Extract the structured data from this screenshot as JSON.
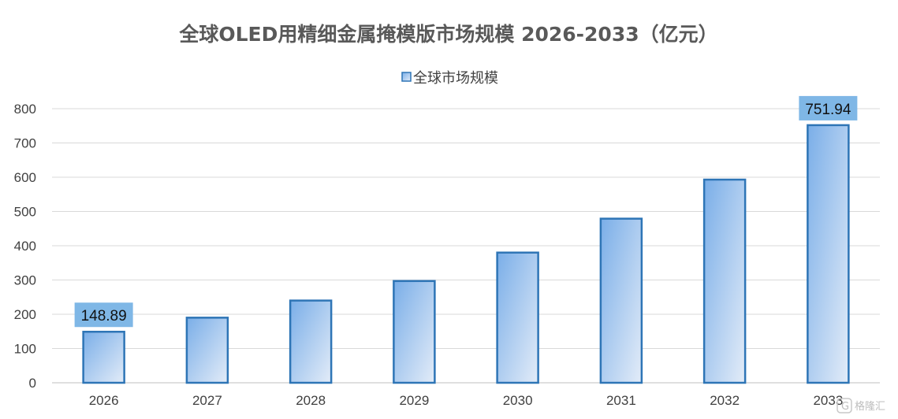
{
  "chart_data": {
    "type": "bar",
    "title": "全球OLED用精细金属掩模版市场规模 2026-2033（亿元）",
    "categories": [
      "2026",
      "2027",
      "2028",
      "2029",
      "2030",
      "2031",
      "2032",
      "2033"
    ],
    "series": [
      {
        "name": "全球市场规模",
        "values": [
          148.89,
          190,
          240,
          297,
          380,
          479,
          593,
          751.94
        ]
      }
    ],
    "data_labels": [
      {
        "index": 0,
        "text": "148.89"
      },
      {
        "index": 7,
        "text": "751.94"
      }
    ],
    "ylim": [
      0,
      800
    ],
    "yticks": [
      0,
      100,
      200,
      300,
      400,
      500,
      600,
      700,
      800
    ],
    "grid": true,
    "legend_position": "top-center",
    "colors": {
      "bar_fill_start": "#7aaee8",
      "bar_fill_end": "#e3ecf8",
      "bar_stroke": "#2e75b6",
      "label_bg": "#7fb7e6",
      "grid": "#d9d9d9",
      "title": "#595959"
    }
  },
  "watermark": {
    "icon": "gelonghui-logo-icon",
    "text": "格隆汇"
  }
}
